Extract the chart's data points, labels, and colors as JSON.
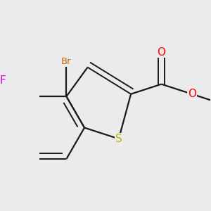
{
  "background_color": "#ebebeb",
  "bond_color": "#1a1a1a",
  "bond_width": 1.6,
  "atoms": {
    "S": {
      "color": "#b8b800",
      "fontsize": 11
    },
    "O": {
      "color": "#ff0000",
      "fontsize": 11
    },
    "Br": {
      "color": "#cc6600",
      "fontsize": 9.5
    },
    "F": {
      "color": "#dd00dd",
      "fontsize": 11
    }
  },
  "figsize": [
    3.0,
    3.0
  ],
  "dpi": 100
}
